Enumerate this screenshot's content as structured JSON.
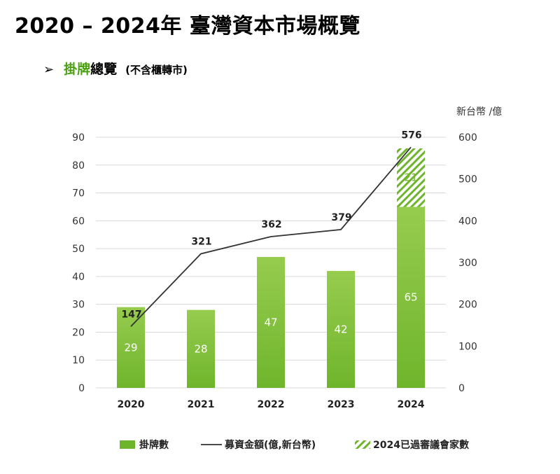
{
  "page": {
    "title": "2020 – 2024年 臺灣資本市場概覽",
    "subtitle_green": "掛牌",
    "subtitle_rest": "總覽",
    "subtitle_note": "(不含櫃轉市)"
  },
  "colors": {
    "bar": "#6fb52c",
    "bar_light": "#97cc4f",
    "line": "#333333",
    "hatch": "#6fb52c",
    "grid": "#d9d9d9"
  },
  "chart_data": {
    "type": "bar",
    "categories": [
      "2020",
      "2021",
      "2022",
      "2023",
      "2024"
    ],
    "series": [
      {
        "name": "掛牌數",
        "type": "bar",
        "axis": "left",
        "values": [
          29,
          28,
          47,
          42,
          65
        ]
      },
      {
        "name": "2024已過審議會家數",
        "type": "bar-stacked-hatched",
        "axis": "left",
        "values": [
          null,
          null,
          null,
          null,
          21
        ]
      },
      {
        "name": "募資金額(億,新台幣)",
        "type": "line",
        "axis": "right",
        "values": [
          147,
          321,
          362,
          379,
          576
        ]
      }
    ],
    "left_axis": {
      "ylim": [
        0,
        90
      ],
      "ticks": [
        0,
        10,
        20,
        30,
        40,
        50,
        60,
        70,
        80,
        90
      ]
    },
    "right_axis": {
      "label": "新台幣 /億",
      "ylim": [
        0,
        600
      ],
      "ticks": [
        0,
        100,
        200,
        300,
        400,
        500,
        600
      ]
    },
    "grid": true,
    "legend_position": "bottom"
  }
}
